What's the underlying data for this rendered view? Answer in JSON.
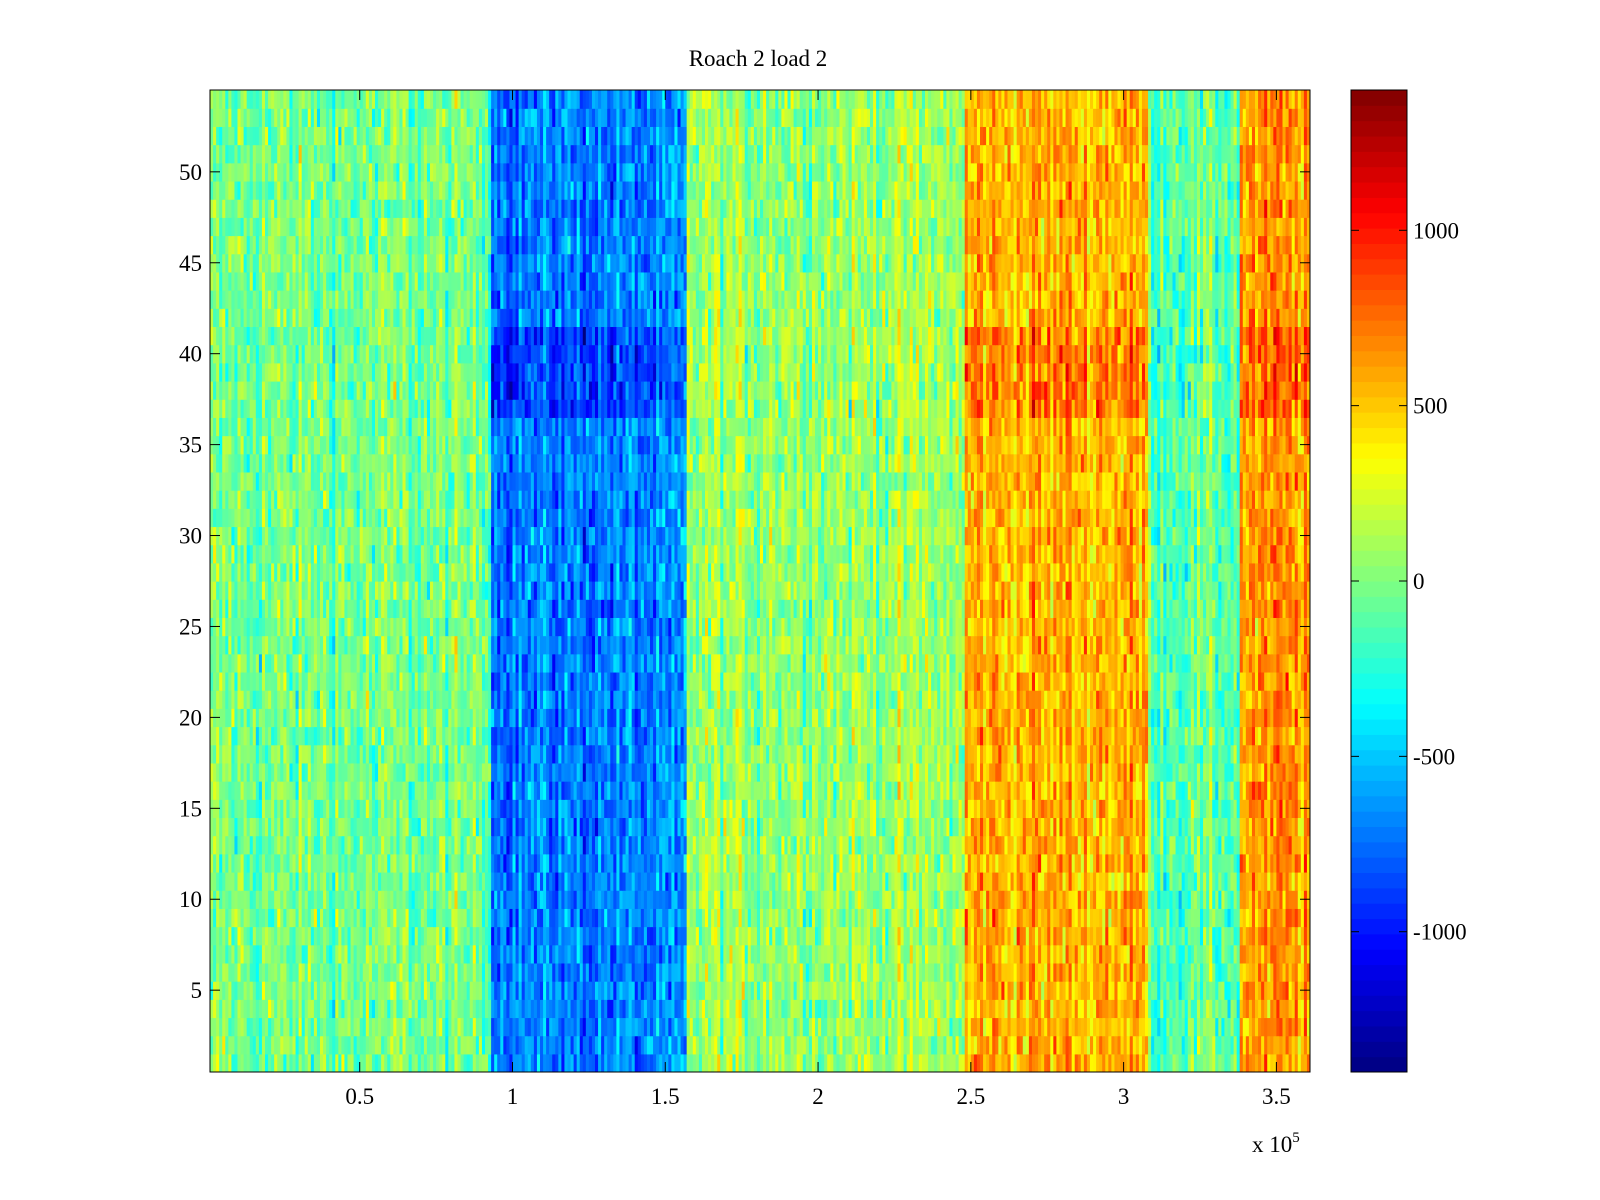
{
  "chart_data": {
    "type": "heatmap",
    "title": "Roach 2 load 2",
    "xlabel": "",
    "ylabel": "",
    "x_multiplier_label": "x 10",
    "x_multiplier_exponent": "5",
    "xlim": [
      0.01,
      3.61
    ],
    "ylim": [
      0.5,
      54.5
    ],
    "x_ticks": [
      0.5,
      1,
      1.5,
      2,
      2.5,
      3,
      3.5
    ],
    "x_tick_labels": [
      "0.5",
      "1",
      "1.5",
      "2",
      "2.5",
      "3",
      "3.5"
    ],
    "y_ticks": [
      5,
      10,
      15,
      20,
      25,
      30,
      35,
      40,
      45,
      50
    ],
    "y_tick_labels": [
      "5",
      "10",
      "15",
      "20",
      "25",
      "30",
      "35",
      "40",
      "45",
      "50"
    ],
    "rows": 54,
    "columns": 360,
    "colormap": "jet",
    "clim": [
      -1400,
      1400
    ],
    "colorbar": {
      "ticks": [
        -1000,
        -500,
        0,
        500,
        1000
      ],
      "tick_labels": [
        "-1000",
        "-500",
        "0",
        "500",
        "1000"
      ]
    },
    "column_bands": [
      {
        "x_start": 0.01,
        "x_end": 0.93,
        "mean_value": -30
      },
      {
        "x_start": 0.93,
        "x_end": 1.57,
        "mean_value": -700
      },
      {
        "x_start": 1.57,
        "x_end": 2.48,
        "mean_value": 80
      },
      {
        "x_start": 2.48,
        "x_end": 3.08,
        "mean_value": 560
      },
      {
        "x_start": 3.08,
        "x_end": 3.38,
        "mean_value": -80
      },
      {
        "x_start": 3.38,
        "x_end": 3.61,
        "mean_value": 620
      }
    ],
    "grid": false
  }
}
